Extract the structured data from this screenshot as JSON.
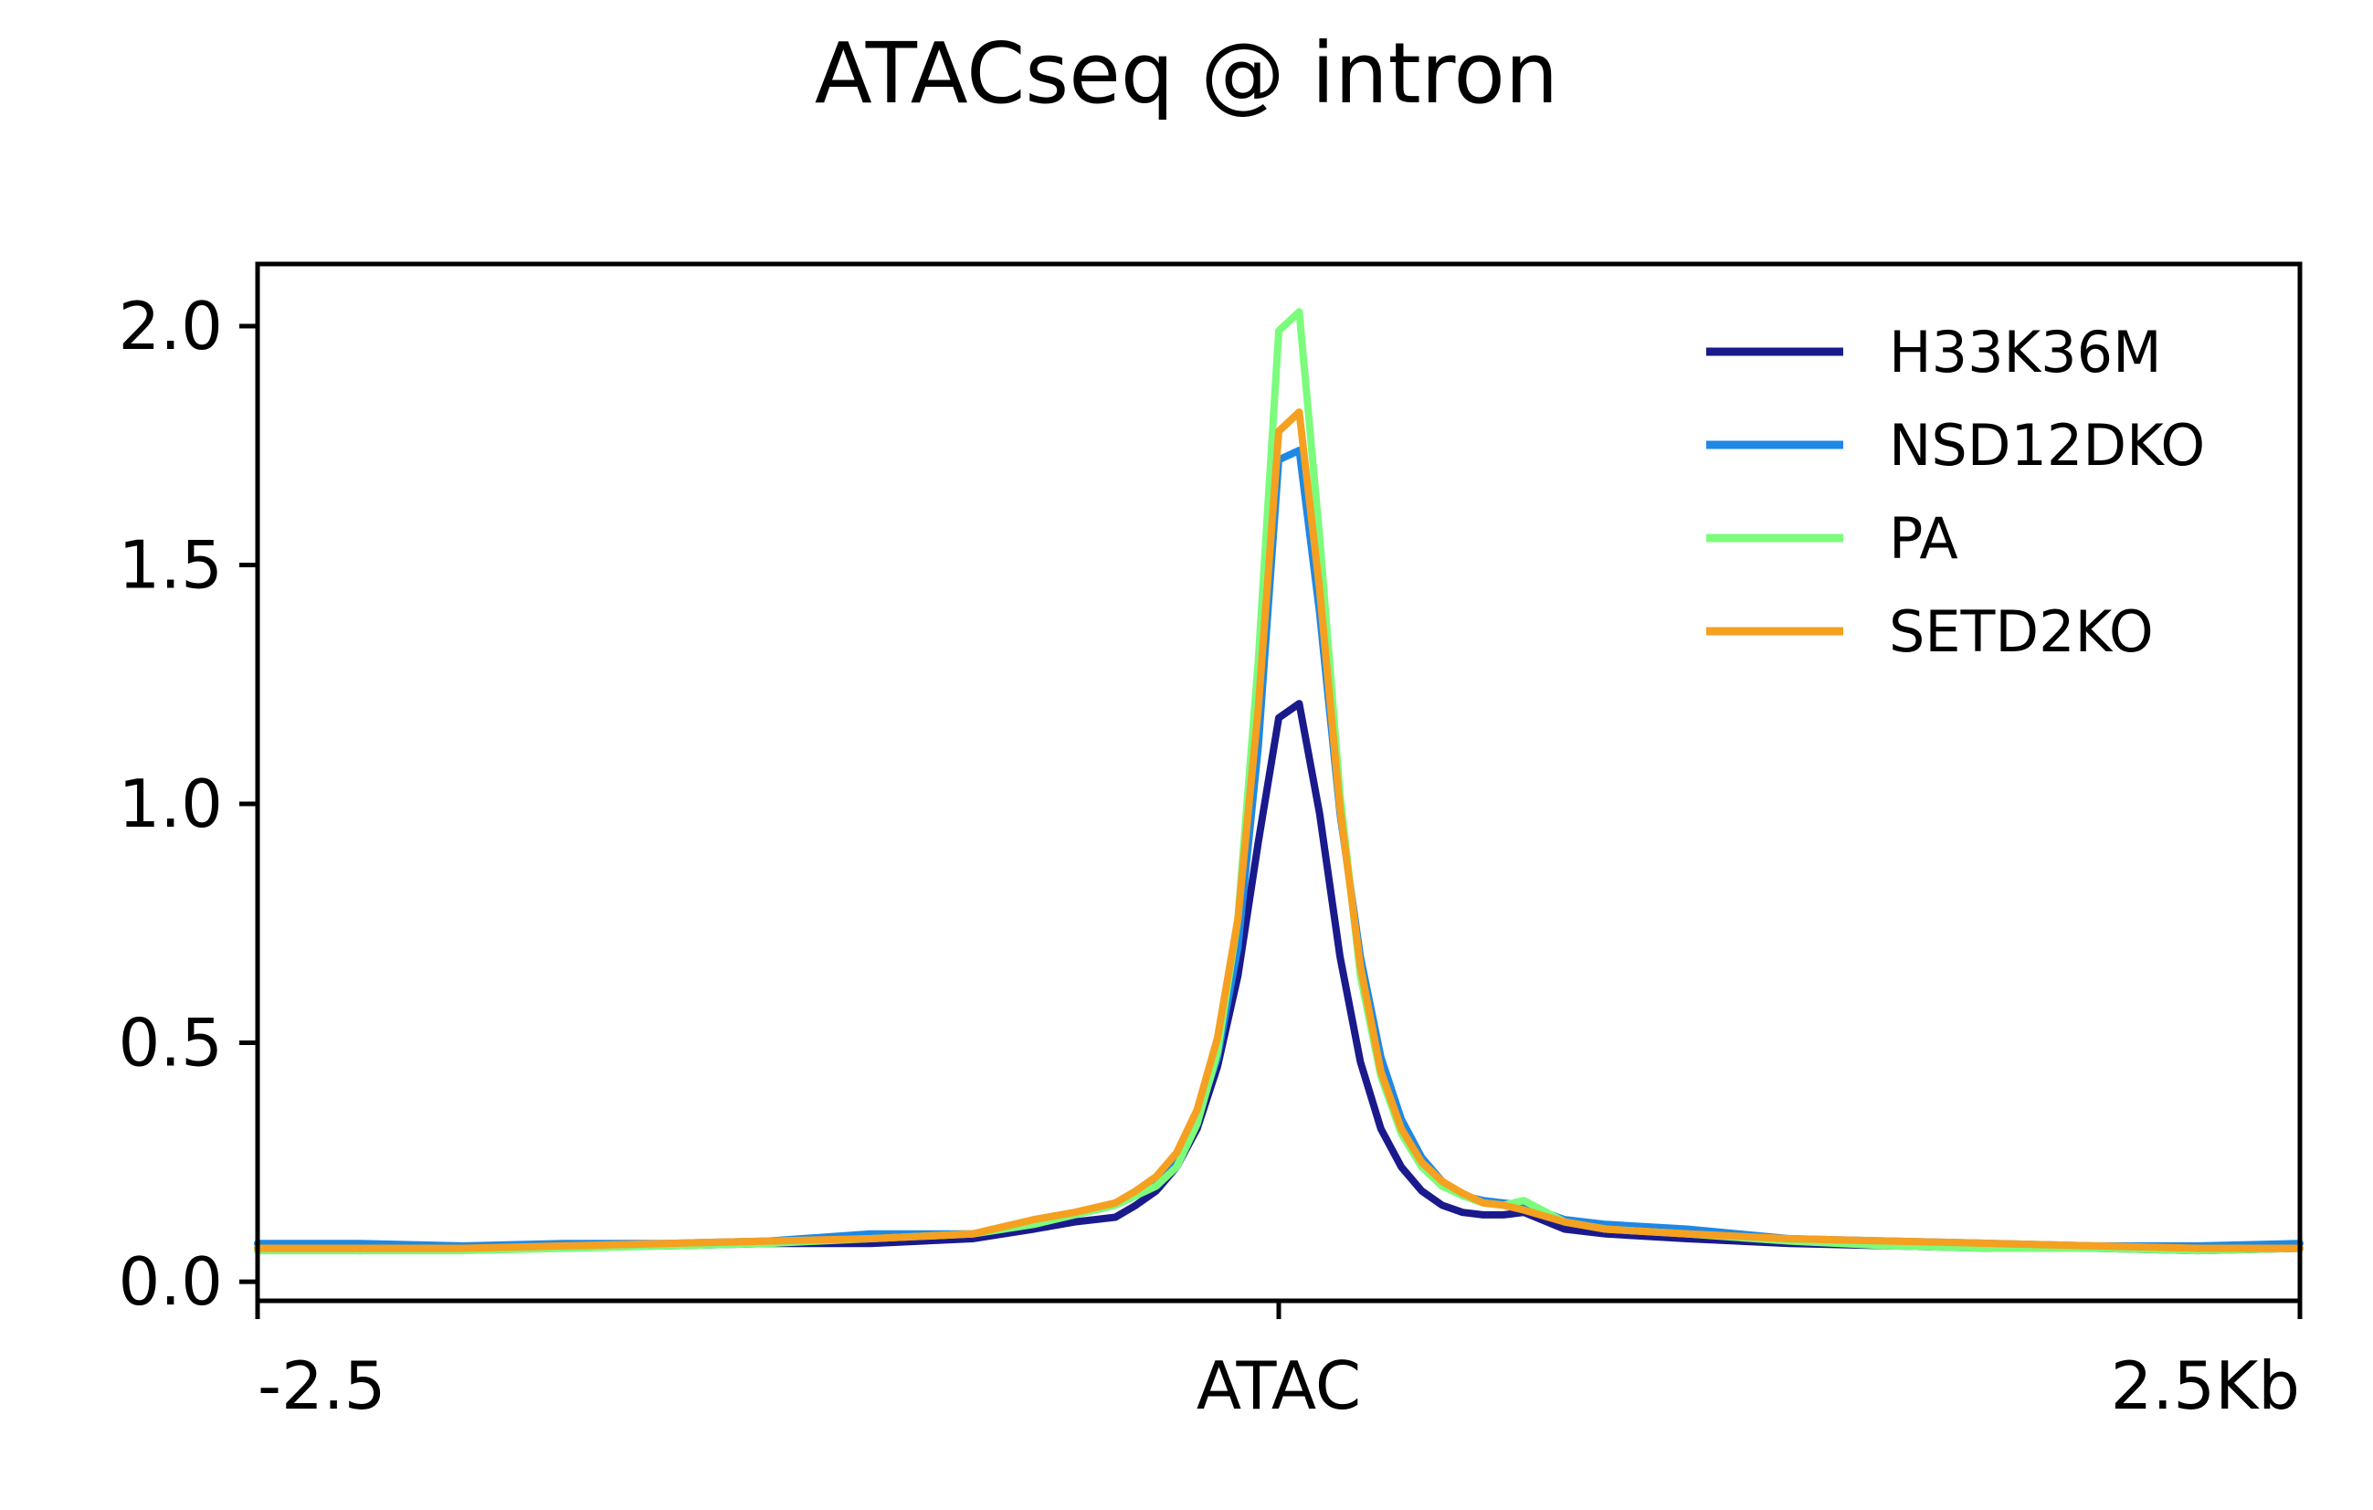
{
  "chart_data": {
    "type": "line",
    "title": "ATACseq @ intron",
    "xlabel": "",
    "ylabel": "",
    "xlim": [
      -2500,
      2500
    ],
    "ylim": [
      -0.04,
      2.13
    ],
    "x_ticks": [
      {
        "value": -2500,
        "label": "-2.5"
      },
      {
        "value": 0,
        "label": "ATAC"
      },
      {
        "value": 2500,
        "label": "2.5Kb"
      }
    ],
    "y_ticks": [
      {
        "value": 0.0,
        "label": "0.0"
      },
      {
        "value": 0.5,
        "label": "0.5"
      },
      {
        "value": 1.0,
        "label": "1.0"
      },
      {
        "value": 1.5,
        "label": "1.5"
      },
      {
        "value": 2.0,
        "label": "2.0"
      }
    ],
    "grid": false,
    "legend_position": "top-right",
    "x": [
      -2500,
      -2250,
      -2000,
      -1750,
      -1500,
      -1250,
      -1000,
      -750,
      -600,
      -500,
      -400,
      -350,
      -300,
      -250,
      -200,
      -150,
      -100,
      -50,
      0,
      50,
      100,
      150,
      200,
      250,
      300,
      350,
      400,
      450,
      500,
      550,
      600,
      700,
      800,
      1000,
      1250,
      1500,
      1750,
      2000,
      2250,
      2500
    ],
    "series": [
      {
        "name": "H33K36M",
        "color": "#1a1a8c",
        "values": [
          0.07,
          0.065,
          0.07,
          0.075,
          0.075,
          0.08,
          0.08,
          0.09,
          0.11,
          0.125,
          0.135,
          0.16,
          0.19,
          0.24,
          0.32,
          0.45,
          0.64,
          0.92,
          1.18,
          1.21,
          0.98,
          0.68,
          0.46,
          0.32,
          0.24,
          0.19,
          0.16,
          0.145,
          0.14,
          0.14,
          0.145,
          0.11,
          0.1,
          0.09,
          0.08,
          0.075,
          0.07,
          0.07,
          0.065,
          0.07
        ]
      },
      {
        "name": "NSD12DKO",
        "color": "#1e88e5",
        "values": [
          0.08,
          0.08,
          0.075,
          0.08,
          0.08,
          0.085,
          0.1,
          0.1,
          0.12,
          0.14,
          0.16,
          0.18,
          0.21,
          0.26,
          0.34,
          0.47,
          0.7,
          1.12,
          1.72,
          1.74,
          1.4,
          0.98,
          0.68,
          0.47,
          0.34,
          0.26,
          0.21,
          0.18,
          0.17,
          0.165,
          0.16,
          0.13,
          0.12,
          0.11,
          0.09,
          0.085,
          0.08,
          0.075,
          0.075,
          0.08
        ]
      },
      {
        "name": "PA",
        "color": "#7cfc7c",
        "values": [
          0.065,
          0.065,
          0.065,
          0.07,
          0.075,
          0.08,
          0.09,
          0.1,
          0.12,
          0.14,
          0.16,
          0.18,
          0.2,
          0.24,
          0.33,
          0.48,
          0.76,
          1.3,
          1.99,
          2.03,
          1.56,
          1.02,
          0.64,
          0.43,
          0.31,
          0.24,
          0.2,
          0.18,
          0.165,
          0.16,
          0.17,
          0.125,
          0.11,
          0.1,
          0.085,
          0.075,
          0.07,
          0.07,
          0.065,
          0.07
        ]
      },
      {
        "name": "SETD2KO",
        "color": "#f5a020",
        "values": [
          0.07,
          0.07,
          0.07,
          0.075,
          0.08,
          0.085,
          0.09,
          0.1,
          0.13,
          0.145,
          0.165,
          0.19,
          0.22,
          0.27,
          0.36,
          0.51,
          0.76,
          1.2,
          1.78,
          1.82,
          1.45,
          0.99,
          0.66,
          0.44,
          0.32,
          0.25,
          0.21,
          0.185,
          0.165,
          0.16,
          0.15,
          0.125,
          0.11,
          0.1,
          0.09,
          0.085,
          0.08,
          0.075,
          0.07,
          0.07
        ]
      }
    ]
  }
}
